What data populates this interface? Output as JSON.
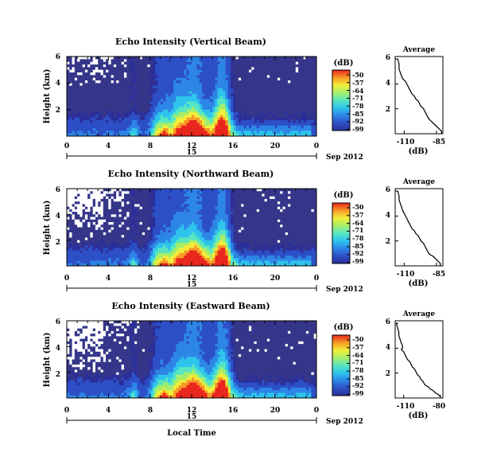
{
  "chart_data": [
    {
      "type": "heatmap",
      "title": "Echo Intensity (Vertical Beam)",
      "ylabel": "Height (km)",
      "y_ticks": [
        "6",
        "4",
        "2"
      ],
      "x_ticks": [
        "0",
        "4",
        "8",
        "12",
        "16",
        "20",
        "0"
      ],
      "date_day": "15",
      "date_month": "Sep 2012",
      "colorbar": {
        "unit": "(dB)",
        "ticks": [
          "-50",
          "-57",
          "-64",
          "-71",
          "-78",
          "-85",
          "-92",
          "-99"
        ]
      },
      "average_profile": {
        "title": "Average",
        "xlabel": "(dB)",
        "x_ticks": [
          "-110",
          "-85"
        ],
        "y_ticks": [
          "6",
          "4",
          "2"
        ],
        "xlim": [
          -117,
          -80
        ],
        "ylim": [
          0,
          6.2
        ],
        "x": [
          -115,
          -114,
          -114,
          -113,
          -112,
          -111,
          -109,
          -108,
          -107,
          -106,
          -105,
          -104,
          -102,
          -101,
          -99,
          -98,
          -97,
          -95,
          -94,
          -93,
          -92,
          -91,
          -89,
          -88,
          -87,
          -86,
          -85,
          -84,
          -83,
          -82,
          -81,
          -81,
          -81
        ],
        "y": [
          6.0,
          5.6,
          5.2,
          4.9,
          4.6,
          4.4,
          4.2,
          4.0,
          3.8,
          3.6,
          3.4,
          3.2,
          3.0,
          2.8,
          2.6,
          2.4,
          2.2,
          2.0,
          1.8,
          1.6,
          1.4,
          1.2,
          1.0,
          0.9,
          0.8,
          0.7,
          0.6,
          0.5,
          0.4,
          0.3,
          0.2,
          0.1,
          0.0
        ]
      }
    },
    {
      "type": "heatmap",
      "title": "Echo Intensity (Northward Beam)",
      "ylabel": "Height (km)",
      "y_ticks": [
        "6",
        "4",
        "2"
      ],
      "x_ticks": [
        "0",
        "4",
        "8",
        "12",
        "16",
        "20",
        "0"
      ],
      "date_day": "15",
      "date_month": "Sep 2012",
      "colorbar": {
        "unit": "(dB)",
        "ticks": [
          "-50",
          "-57",
          "-64",
          "-71",
          "-78",
          "-85",
          "-92",
          "-99"
        ]
      },
      "average_profile": {
        "title": "Average",
        "xlabel": "(dB)",
        "x_ticks": [
          "-110",
          "-85"
        ],
        "y_ticks": [
          "6",
          "4",
          "2"
        ],
        "xlim": [
          -117,
          -80
        ],
        "ylim": [
          0,
          6.2
        ],
        "x": [
          -115,
          -114,
          -114,
          -113,
          -112,
          -111,
          -110,
          -109,
          -108,
          -107,
          -106,
          -105,
          -104,
          -102,
          -101,
          -99,
          -98,
          -97,
          -95,
          -94,
          -93,
          -92,
          -91,
          -90,
          -88,
          -87,
          -86,
          -85,
          -84,
          -83,
          -82,
          -82,
          -82
        ],
        "y": [
          6.0,
          5.6,
          5.3,
          5.0,
          4.7,
          4.4,
          4.2,
          4.0,
          3.8,
          3.6,
          3.4,
          3.2,
          3.0,
          2.8,
          2.6,
          2.4,
          2.2,
          2.0,
          1.8,
          1.6,
          1.4,
          1.2,
          1.0,
          0.9,
          0.8,
          0.7,
          0.6,
          0.5,
          0.4,
          0.3,
          0.2,
          0.1,
          0.0
        ]
      }
    },
    {
      "type": "heatmap",
      "title": "Echo Intensity (Eastward Beam)",
      "ylabel": "Height (km)",
      "y_ticks": [
        "6",
        "4",
        "2"
      ],
      "x_ticks": [
        "0",
        "4",
        "8",
        "12",
        "16",
        "20",
        "0"
      ],
      "date_day": "15",
      "date_month": "Sep 2012",
      "colorbar": {
        "unit": "(dB)",
        "ticks": [
          "-50",
          "-57",
          "-64",
          "-71",
          "-78",
          "-85",
          "-92",
          "-99"
        ]
      },
      "average_profile": {
        "title": "Average",
        "xlabel": "(dB)",
        "x_ticks": [
          "-110",
          "-80"
        ],
        "y_ticks": [
          "6",
          "4",
          "2"
        ],
        "xlim": [
          -117,
          -78
        ],
        "ylim": [
          0,
          6.2
        ],
        "x": [
          -116,
          -115,
          -114,
          -114,
          -113,
          -112,
          -111,
          -111,
          -112,
          -110,
          -109,
          -108,
          -107,
          -105,
          -104,
          -103,
          -101,
          -100,
          -99,
          -97,
          -96,
          -94,
          -93,
          -92,
          -90,
          -89,
          -88,
          -86,
          -85,
          -84,
          -82,
          -81,
          -80
        ],
        "y": [
          6.0,
          5.6,
          5.3,
          5.0,
          4.7,
          4.4,
          4.2,
          4.0,
          3.9,
          3.7,
          3.5,
          3.3,
          3.1,
          2.9,
          2.7,
          2.5,
          2.3,
          2.1,
          1.9,
          1.7,
          1.5,
          1.3,
          1.1,
          1.0,
          0.9,
          0.8,
          0.7,
          0.6,
          0.5,
          0.4,
          0.3,
          0.2,
          0.1
        ]
      }
    }
  ],
  "xaxis_label": "Local Time",
  "colors": {
    "background_field": "#35368a",
    "colormap": [
      "#2b2f9a",
      "#2d4fc6",
      "#2d86e6",
      "#2ec4ec",
      "#58e6c0",
      "#a6ee6a",
      "#f2ee3a",
      "#f79a26",
      "#e9271e"
    ]
  }
}
